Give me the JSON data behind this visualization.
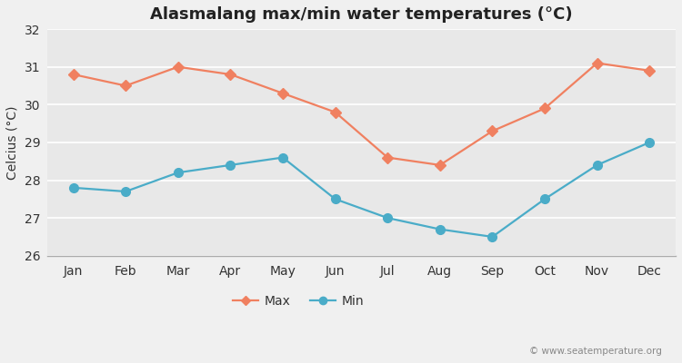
{
  "title": "Alasmalang max/min water temperatures (°C)",
  "ylabel": "Celcius (°C)",
  "months": [
    "Jan",
    "Feb",
    "Mar",
    "Apr",
    "May",
    "Jun",
    "Jul",
    "Aug",
    "Sep",
    "Oct",
    "Nov",
    "Dec"
  ],
  "max_values": [
    30.8,
    30.5,
    31.0,
    30.8,
    30.3,
    29.8,
    28.6,
    28.4,
    29.3,
    29.9,
    31.1,
    30.9
  ],
  "min_values": [
    27.8,
    27.7,
    28.2,
    28.4,
    28.6,
    27.5,
    27.0,
    26.7,
    26.5,
    27.5,
    28.4,
    29.0
  ],
  "max_color": "#f08060",
  "min_color": "#4aacc8",
  "background_color": "#f0f0f0",
  "plot_bg_color": "#e8e8e8",
  "grid_color": "#ffffff",
  "ylim": [
    26,
    32
  ],
  "yticks": [
    26,
    27,
    28,
    29,
    30,
    31,
    32
  ],
  "line_width": 1.6,
  "title_fontsize": 13,
  "label_fontsize": 10,
  "tick_fontsize": 10,
  "legend_fontsize": 10,
  "watermark": "© www.seatemperature.org"
}
